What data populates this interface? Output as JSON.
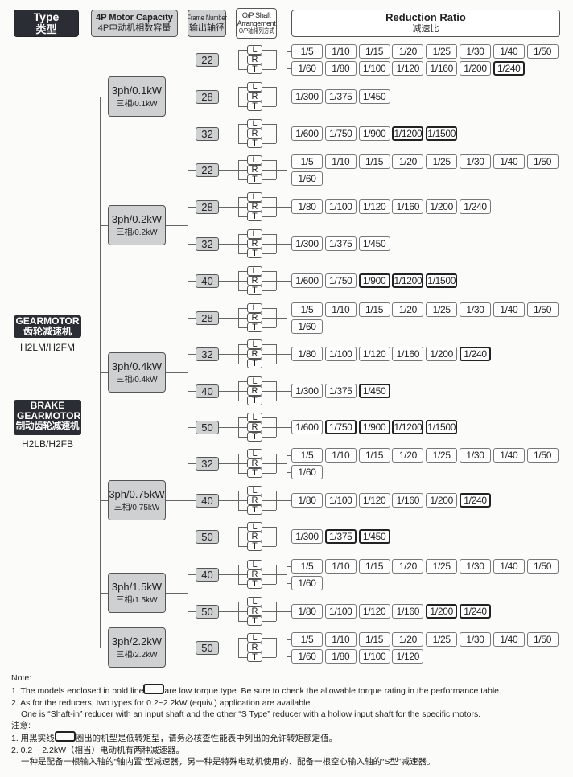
{
  "header": {
    "type_label": "Type",
    "type_label_cn": "类型",
    "capacity_label": "4P Motor Capacity",
    "capacity_label_cn": "4P电动机相数容量",
    "frame_label": "Frame Number",
    "frame_label_cn": "输出轴径",
    "shaft_label": "O/P Shaft Arrangement",
    "shaft_label_cn": "O/P轴排列方式",
    "ratio_label": "Reduction Ratio",
    "ratio_label_cn": "减速比"
  },
  "types": [
    {
      "name": "GEARMOTOR",
      "name_cn": "齿轮减速机",
      "models": "H2LM/H2FM"
    },
    {
      "name": "BRAKE GEARMOTOR",
      "name_cn": "制动齿轮减速机",
      "models": "H2LB/H2FB"
    }
  ],
  "arrangements": [
    "L",
    "R",
    "T"
  ],
  "colors": {
    "dark_box": "#2a2d33",
    "grey_box": "#cfd0d2",
    "low_torque_border": "#222222"
  },
  "groups": [
    {
      "motor": "3ph/0.1kW",
      "motor_cn": "三相/0.1kW",
      "frames": [
        {
          "frame": "22",
          "rows": [
            [
              {
                "v": "1/5"
              },
              {
                "v": "1/10"
              },
              {
                "v": "1/15"
              },
              {
                "v": "1/20"
              },
              {
                "v": "1/25"
              },
              {
                "v": "1/30"
              },
              {
                "v": "1/40"
              },
              {
                "v": "1/50"
              }
            ],
            [
              {
                "v": "1/60"
              },
              {
                "v": "1/80"
              },
              {
                "v": "1/100"
              },
              {
                "v": "1/120"
              },
              {
                "v": "1/160"
              },
              {
                "v": "1/200"
              },
              {
                "v": "1/240",
                "low_torque": true
              }
            ]
          ]
        },
        {
          "frame": "28",
          "rows": [
            [
              {
                "v": "1/300"
              },
              {
                "v": "1/375"
              },
              {
                "v": "1/450"
              }
            ]
          ]
        },
        {
          "frame": "32",
          "rows": [
            [
              {
                "v": "1/600"
              },
              {
                "v": "1/750"
              },
              {
                "v": "1/900"
              },
              {
                "v": "1/1200",
                "low_torque": true
              },
              {
                "v": "1/1500",
                "low_torque": true
              }
            ]
          ]
        }
      ]
    },
    {
      "motor": "3ph/0.2kW",
      "motor_cn": "三相/0.2kW",
      "frames": [
        {
          "frame": "22",
          "rows": [
            [
              {
                "v": "1/5"
              },
              {
                "v": "1/10"
              },
              {
                "v": "1/15"
              },
              {
                "v": "1/20"
              },
              {
                "v": "1/25"
              },
              {
                "v": "1/30"
              },
              {
                "v": "1/40"
              },
              {
                "v": "1/50"
              }
            ],
            [
              {
                "v": "1/60"
              }
            ]
          ]
        },
        {
          "frame": "28",
          "rows": [
            [
              {
                "v": "1/80"
              },
              {
                "v": "1/100"
              },
              {
                "v": "1/120"
              },
              {
                "v": "1/160"
              },
              {
                "v": "1/200"
              },
              {
                "v": "1/240"
              }
            ]
          ]
        },
        {
          "frame": "32",
          "rows": [
            [
              {
                "v": "1/300"
              },
              {
                "v": "1/375"
              },
              {
                "v": "1/450"
              }
            ]
          ]
        },
        {
          "frame": "40",
          "rows": [
            [
              {
                "v": "1/600"
              },
              {
                "v": "1/750"
              },
              {
                "v": "1/900",
                "low_torque": true
              },
              {
                "v": "1/1200",
                "low_torque": true
              },
              {
                "v": "1/1500",
                "low_torque": true
              }
            ]
          ]
        }
      ]
    },
    {
      "motor": "3ph/0.4kW",
      "motor_cn": "三相/0.4kW",
      "frames": [
        {
          "frame": "28",
          "rows": [
            [
              {
                "v": "1/5"
              },
              {
                "v": "1/10"
              },
              {
                "v": "1/15"
              },
              {
                "v": "1/20"
              },
              {
                "v": "1/25"
              },
              {
                "v": "1/30"
              },
              {
                "v": "1/40"
              },
              {
                "v": "1/50"
              }
            ],
            [
              {
                "v": "1/60"
              }
            ]
          ]
        },
        {
          "frame": "32",
          "rows": [
            [
              {
                "v": "1/80"
              },
              {
                "v": "1/100"
              },
              {
                "v": "1/120"
              },
              {
                "v": "1/160"
              },
              {
                "v": "1/200"
              },
              {
                "v": "1/240",
                "low_torque": true
              }
            ]
          ]
        },
        {
          "frame": "40",
          "rows": [
            [
              {
                "v": "1/300"
              },
              {
                "v": "1/375"
              },
              {
                "v": "1/450",
                "low_torque": true
              }
            ]
          ]
        },
        {
          "frame": "50",
          "rows": [
            [
              {
                "v": "1/600"
              },
              {
                "v": "1/750",
                "low_torque": true
              },
              {
                "v": "1/900",
                "low_torque": true
              },
              {
                "v": "1/1200",
                "low_torque": true
              },
              {
                "v": "1/1500",
                "low_torque": true
              }
            ]
          ]
        }
      ]
    },
    {
      "motor": "3ph/0.75kW",
      "motor_cn": "三相/0.75kW",
      "frames": [
        {
          "frame": "32",
          "rows": [
            [
              {
                "v": "1/5"
              },
              {
                "v": "1/10"
              },
              {
                "v": "1/15"
              },
              {
                "v": "1/20"
              },
              {
                "v": "1/25"
              },
              {
                "v": "1/30"
              },
              {
                "v": "1/40"
              },
              {
                "v": "1/50"
              }
            ],
            [
              {
                "v": "1/60"
              }
            ]
          ]
        },
        {
          "frame": "40",
          "rows": [
            [
              {
                "v": "1/80"
              },
              {
                "v": "1/100"
              },
              {
                "v": "1/120"
              },
              {
                "v": "1/160"
              },
              {
                "v": "1/200"
              },
              {
                "v": "1/240",
                "low_torque": true
              }
            ]
          ]
        },
        {
          "frame": "50",
          "rows": [
            [
              {
                "v": "1/300"
              },
              {
                "v": "1/375",
                "low_torque": true
              },
              {
                "v": "1/450",
                "low_torque": true
              }
            ]
          ]
        }
      ]
    },
    {
      "motor": "3ph/1.5kW",
      "motor_cn": "三相/1.5kW",
      "frames": [
        {
          "frame": "40",
          "rows": [
            [
              {
                "v": "1/5"
              },
              {
                "v": "1/10"
              },
              {
                "v": "1/15"
              },
              {
                "v": "1/20"
              },
              {
                "v": "1/25"
              },
              {
                "v": "1/30"
              },
              {
                "v": "1/40"
              },
              {
                "v": "1/50"
              }
            ],
            [
              {
                "v": "1/60"
              }
            ]
          ]
        },
        {
          "frame": "50",
          "rows": [
            [
              {
                "v": "1/80"
              },
              {
                "v": "1/100"
              },
              {
                "v": "1/120"
              },
              {
                "v": "1/160"
              },
              {
                "v": "1/200",
                "low_torque": true
              },
              {
                "v": "1/240",
                "low_torque": true
              }
            ]
          ]
        }
      ]
    },
    {
      "motor": "3ph/2.2kW",
      "motor_cn": "三相/2.2kW",
      "frames": [
        {
          "frame": "50",
          "rows": [
            [
              {
                "v": "1/5"
              },
              {
                "v": "1/10"
              },
              {
                "v": "1/15"
              },
              {
                "v": "1/20"
              },
              {
                "v": "1/25"
              },
              {
                "v": "1/30"
              },
              {
                "v": "1/40"
              },
              {
                "v": "1/50"
              }
            ],
            [
              {
                "v": "1/60"
              },
              {
                "v": "1/80"
              },
              {
                "v": "1/100"
              },
              {
                "v": "1/120"
              }
            ]
          ]
        }
      ]
    }
  ],
  "notes": {
    "title": "Note:",
    "n1_a": "1. The models enclosed in bold line",
    "n1_b": "are low torque type.  Be sure to check the allowable torque rating in the performance table.",
    "n2": "2. As for the reducers, two types for 0.2~2.2kW (equiv.) application are available.",
    "n2b": "One is “Shaft-in” reducer with an input shaft and the other “S Type” reducer with a hollow input shaft for the specific motors.",
    "title_cn": "注意:",
    "c1_a": "1. 用黑实线",
    "c1_b": "圈出的机型是低转矩型，请务必核查性能表中列出的允许转矩额定值。",
    "c2": "2. 0.2 ~ 2.2kW（相当）电动机有两种减速器。",
    "c2b": "一种是配备一根输入轴的“轴内置”型减速器，另一种是特殊电动机使用的、配备一根空心输入轴的“S型”减速器。"
  }
}
